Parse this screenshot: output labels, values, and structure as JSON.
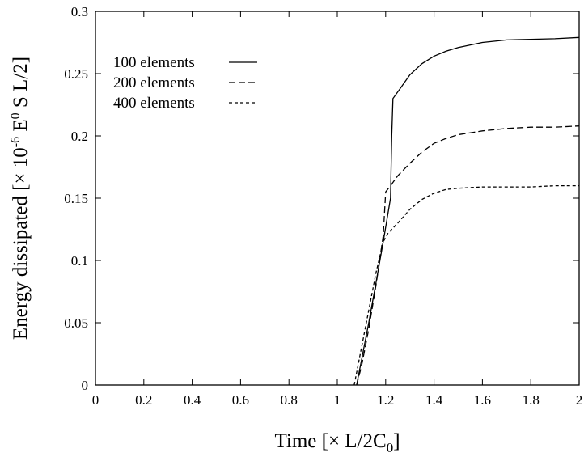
{
  "chart_data": {
    "type": "line",
    "xlabel": "Time [× L/2C",
    "xlabel_sub": "0",
    "xlabel_end": "]",
    "ylabel": "Energy dissipated [× 10",
    "ylabel_sup": "-6",
    "ylabel_mid": " E",
    "ylabel_sup2": "0",
    "ylabel_end": " S L/2]",
    "xlim": [
      0,
      2
    ],
    "ylim": [
      0,
      0.3
    ],
    "x_ticks": [
      0,
      0.2,
      0.4,
      0.6,
      0.8,
      1,
      1.2,
      1.4,
      1.6,
      1.8,
      2
    ],
    "x_tick_labels": [
      "0",
      "0.2",
      "0.4",
      "0.6",
      "0.8",
      "1",
      "1.2",
      "1.4",
      "1.6",
      "1.8",
      "2"
    ],
    "y_ticks": [
      0,
      0.05,
      0.1,
      0.15,
      0.2,
      0.25,
      0.3
    ],
    "y_tick_labels": [
      "0",
      "0.05",
      "0.1",
      "0.15",
      "0.2",
      "0.25",
      "0.3"
    ],
    "legend_position": "top-left",
    "series": [
      {
        "name": "100 elements",
        "dash": "solid",
        "x": [
          1.08,
          1.1,
          1.13,
          1.16,
          1.19,
          1.22,
          1.225,
          1.23,
          1.26,
          1.3,
          1.35,
          1.4,
          1.45,
          1.5,
          1.6,
          1.7,
          1.8,
          1.9,
          2.0
        ],
        "y": [
          0.0,
          0.02,
          0.05,
          0.082,
          0.115,
          0.15,
          0.2,
          0.23,
          0.238,
          0.249,
          0.258,
          0.264,
          0.268,
          0.271,
          0.275,
          0.277,
          0.2775,
          0.278,
          0.279
        ]
      },
      {
        "name": "200 elements",
        "dash": "long-dash",
        "x": [
          1.08,
          1.1,
          1.13,
          1.16,
          1.19,
          1.2,
          1.22,
          1.25,
          1.3,
          1.35,
          1.4,
          1.45,
          1.5,
          1.6,
          1.7,
          1.8,
          1.9,
          2.0
        ],
        "y": [
          0.0,
          0.015,
          0.045,
          0.08,
          0.12,
          0.155,
          0.16,
          0.168,
          0.178,
          0.187,
          0.194,
          0.198,
          0.201,
          0.204,
          0.206,
          0.207,
          0.207,
          0.208
        ]
      },
      {
        "name": "400 elements",
        "dash": "short-dash",
        "x": [
          1.07,
          1.1,
          1.13,
          1.16,
          1.19,
          1.21,
          1.25,
          1.3,
          1.35,
          1.4,
          1.45,
          1.5,
          1.6,
          1.7,
          1.8,
          1.9,
          2.0
        ],
        "y": [
          0.0,
          0.03,
          0.06,
          0.09,
          0.115,
          0.122,
          0.13,
          0.141,
          0.149,
          0.154,
          0.157,
          0.158,
          0.159,
          0.159,
          0.159,
          0.16,
          0.16
        ]
      }
    ]
  }
}
